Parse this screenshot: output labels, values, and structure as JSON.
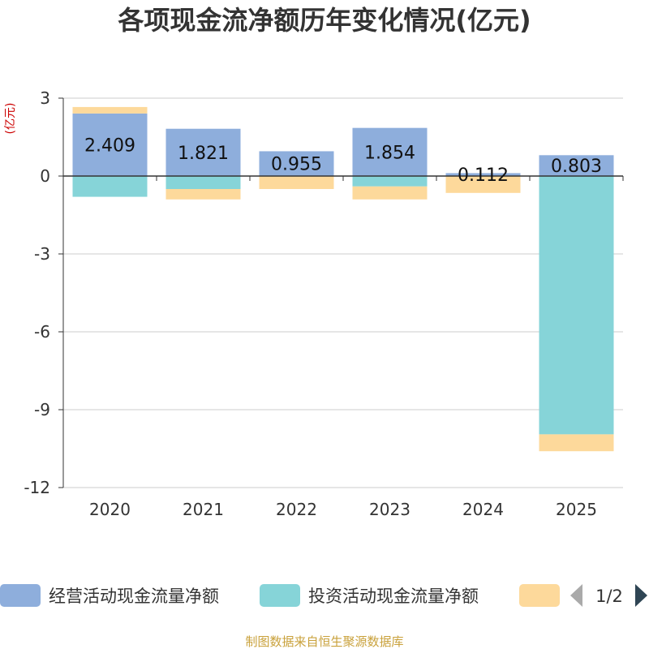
{
  "chart_data": {
    "type": "bar",
    "stacked": true,
    "title": "各项现金流净额历年变化情况(亿元)",
    "unit_label": "(亿元)",
    "categories": [
      "2020",
      "2021",
      "2022",
      "2023",
      "2024",
      "2025"
    ],
    "ylim": [
      -12,
      3
    ],
    "yticks": [
      3,
      0,
      -3,
      -6,
      -9,
      -12
    ],
    "grid": true,
    "series": [
      {
        "name": "经营活动现金流量净额",
        "color": "#8eaedc",
        "values": [
          2.409,
          1.821,
          0.955,
          1.854,
          0.112,
          0.803
        ],
        "labels": [
          "2.409",
          "1.821",
          "0.955",
          "1.854",
          "0.112",
          "0.803"
        ]
      },
      {
        "name": "投资活动现金流量净额",
        "color": "#86d4d8",
        "values": [
          -0.8,
          -0.5,
          0,
          -0.4,
          0,
          -9.95
        ]
      },
      {
        "name": "",
        "color": "#fdd99b",
        "values": [
          0.25,
          -0.4,
          -0.5,
          -0.5,
          -0.65,
          -0.65
        ]
      }
    ],
    "legend_position": "bottom",
    "legend_page": "1/2"
  },
  "source": "制图数据来自恒生聚源数据库"
}
